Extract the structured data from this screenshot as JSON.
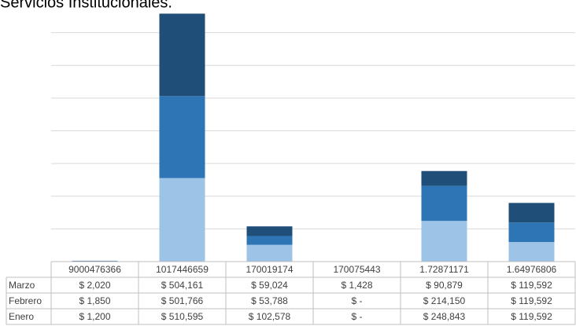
{
  "chart_data": {
    "type": "bar",
    "stacked": true,
    "title": "Servicios Institucionales.",
    "categories": [
      "9000476366",
      "1017446659",
      "170019174",
      "170075443",
      "1.72871171",
      "1.64976806"
    ],
    "series": [
      {
        "name": "Enero",
        "color": "#9dc3e6",
        "values": [
          1200,
          510595,
          102578,
          0,
          248843,
          119592
        ],
        "value_labels": [
          "$ 1,200",
          "$ 510,595",
          "$ 102,578",
          "$ -",
          "$ 248,843",
          "$ 119,592"
        ]
      },
      {
        "name": "Febrero",
        "color": "#2e75b6",
        "values": [
          1850,
          501766,
          53788,
          0,
          214150,
          119592
        ],
        "value_labels": [
          "$ 1,850",
          "$ 501,766",
          "$ 53,788",
          "$ -",
          "$ 214,150",
          "$ 119,592"
        ]
      },
      {
        "name": "Marzo",
        "color": "#1f4e79",
        "values": [
          2020,
          504161,
          59024,
          1428,
          90879,
          119592
        ],
        "value_labels": [
          "$ 2,020",
          "$ 504,161",
          "$ 59,024",
          "$ 1,428",
          "$ 90,879",
          "$ 119,592"
        ]
      }
    ],
    "ylim": [
      0,
      1600000
    ],
    "yticks": [
      0,
      200000,
      400000,
      600000,
      800000,
      1000000,
      1200000,
      1400000
    ],
    "grid": true
  }
}
